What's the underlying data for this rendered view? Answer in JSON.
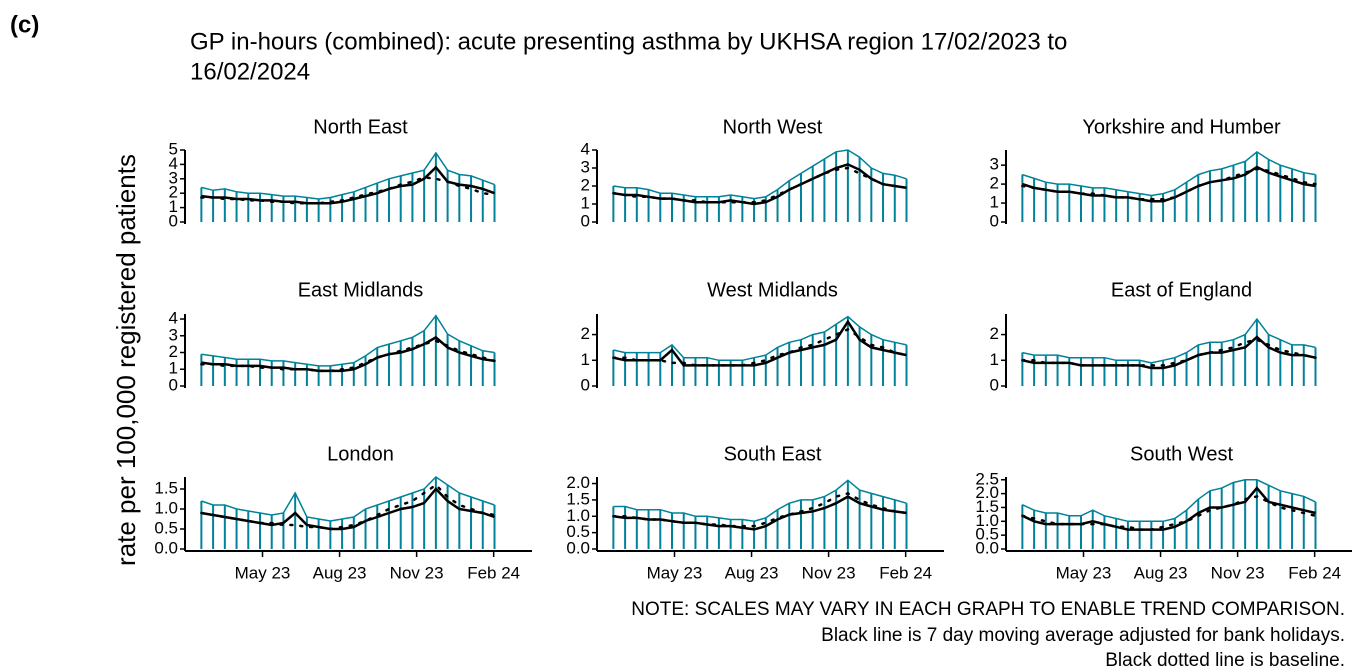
{
  "chart_data": {
    "type": "line",
    "label": "(c)",
    "title": [
      "GP in-hours (combined): acute presenting asthma by UKHSA region 17/02/2023 to",
      "16/02/2024"
    ],
    "ylabel": "rate per 100,000 registered patients",
    "notes": [
      "NOTE: SCALES MAY VARY IN EACH GRAPH TO ENABLE TREND COMPARISON.",
      "Black line is 7 day moving average adjusted for bank holidays.",
      "Black dotted line is baseline."
    ],
    "daily_color": "#00829a",
    "average_color": "#000000",
    "baseline_color": "#000000",
    "x": [
      0,
      14,
      28,
      42,
      56,
      70,
      84,
      98,
      112,
      126,
      140,
      154,
      168,
      182,
      196,
      210,
      224,
      238,
      252,
      266,
      280,
      294,
      308,
      322,
      336,
      350
    ],
    "xlim": [
      -10,
      390
    ],
    "xticks": [
      {
        "value": 73,
        "label": "May 23"
      },
      {
        "value": 165,
        "label": "Aug 23"
      },
      {
        "value": 257,
        "label": "Nov 23"
      },
      {
        "value": 349,
        "label": "Feb 24"
      }
    ],
    "panels": [
      {
        "title": "North East",
        "ylim": [
          0,
          5
        ],
        "yticks": [
          0,
          1,
          2,
          3,
          4,
          5
        ],
        "daily": [
          2.4,
          2.2,
          2.3,
          2.1,
          2.0,
          2.0,
          1.9,
          1.8,
          1.8,
          1.7,
          1.6,
          1.7,
          1.9,
          2.1,
          2.4,
          2.7,
          3.0,
          3.2,
          3.4,
          3.6,
          4.8,
          3.6,
          3.3,
          3.2,
          2.9,
          2.6
        ],
        "average": [
          1.8,
          1.7,
          1.7,
          1.6,
          1.6,
          1.5,
          1.5,
          1.4,
          1.4,
          1.3,
          1.3,
          1.3,
          1.4,
          1.6,
          1.8,
          2.0,
          2.3,
          2.5,
          2.6,
          3.0,
          3.8,
          2.8,
          2.6,
          2.5,
          2.3,
          2.0
        ],
        "baseline": [
          1.7,
          1.7,
          1.6,
          1.6,
          1.5,
          1.5,
          1.4,
          1.4,
          1.3,
          1.3,
          1.3,
          1.4,
          1.5,
          1.7,
          1.9,
          2.1,
          2.3,
          2.6,
          2.8,
          3.1,
          3.0,
          2.8,
          2.5,
          2.3,
          2.0,
          1.9
        ]
      },
      {
        "title": "North West",
        "ylim": [
          0,
          4
        ],
        "yticks": [
          0,
          1,
          2,
          3,
          4
        ],
        "daily": [
          2.0,
          1.9,
          1.9,
          1.8,
          1.6,
          1.6,
          1.5,
          1.4,
          1.4,
          1.4,
          1.5,
          1.4,
          1.3,
          1.4,
          1.8,
          2.3,
          2.7,
          3.1,
          3.5,
          3.9,
          4.0,
          3.6,
          3.0,
          2.7,
          2.6,
          2.4
        ],
        "average": [
          1.6,
          1.5,
          1.5,
          1.4,
          1.3,
          1.3,
          1.2,
          1.1,
          1.1,
          1.1,
          1.2,
          1.1,
          1.0,
          1.1,
          1.4,
          1.8,
          2.1,
          2.4,
          2.7,
          3.0,
          3.2,
          2.9,
          2.4,
          2.1,
          2.0,
          1.9
        ],
        "baseline": [
          1.6,
          1.5,
          1.4,
          1.4,
          1.3,
          1.3,
          1.2,
          1.2,
          1.1,
          1.1,
          1.1,
          1.1,
          1.1,
          1.2,
          1.5,
          1.8,
          2.1,
          2.4,
          2.7,
          2.9,
          3.0,
          2.7,
          2.4,
          2.1,
          2.0,
          1.9
        ]
      },
      {
        "title": "Yorkshire and Humber",
        "ylim": [
          0,
          3.8
        ],
        "yticks": [
          0,
          1,
          2,
          3
        ],
        "daily": [
          2.5,
          2.3,
          2.1,
          2.0,
          2.0,
          1.9,
          1.8,
          1.8,
          1.7,
          1.6,
          1.5,
          1.4,
          1.5,
          1.7,
          2.1,
          2.5,
          2.7,
          2.8,
          3.0,
          3.2,
          3.7,
          3.3,
          3.0,
          2.8,
          2.6,
          2.5
        ],
        "average": [
          2.0,
          1.8,
          1.7,
          1.6,
          1.6,
          1.5,
          1.4,
          1.4,
          1.3,
          1.3,
          1.2,
          1.1,
          1.1,
          1.3,
          1.6,
          1.9,
          2.1,
          2.2,
          2.3,
          2.5,
          2.9,
          2.6,
          2.4,
          2.2,
          2.0,
          1.9
        ],
        "baseline": [
          1.9,
          1.8,
          1.7,
          1.6,
          1.6,
          1.5,
          1.5,
          1.4,
          1.3,
          1.3,
          1.2,
          1.2,
          1.2,
          1.3,
          1.6,
          1.9,
          2.1,
          2.2,
          2.4,
          2.6,
          2.8,
          2.7,
          2.5,
          2.3,
          2.1,
          2.0
        ]
      },
      {
        "title": "East Midlands",
        "ylim": [
          0,
          4.3
        ],
        "yticks": [
          0,
          1,
          2,
          3,
          4
        ],
        "daily": [
          1.9,
          1.8,
          1.7,
          1.6,
          1.6,
          1.6,
          1.5,
          1.5,
          1.4,
          1.3,
          1.2,
          1.2,
          1.3,
          1.4,
          1.8,
          2.3,
          2.5,
          2.7,
          2.9,
          3.3,
          4.2,
          3.1,
          2.7,
          2.4,
          2.1,
          2.0
        ],
        "average": [
          1.4,
          1.3,
          1.3,
          1.2,
          1.2,
          1.2,
          1.1,
          1.1,
          1.0,
          1.0,
          0.9,
          0.9,
          0.9,
          1.0,
          1.3,
          1.7,
          1.9,
          2.0,
          2.2,
          2.5,
          2.9,
          2.3,
          2.0,
          1.8,
          1.6,
          1.5
        ],
        "baseline": [
          1.3,
          1.3,
          1.2,
          1.2,
          1.2,
          1.1,
          1.1,
          1.0,
          1.0,
          1.0,
          0.9,
          0.9,
          1.0,
          1.1,
          1.4,
          1.7,
          1.9,
          2.1,
          2.3,
          2.5,
          2.7,
          2.4,
          2.1,
          1.9,
          1.7,
          1.5
        ]
      },
      {
        "title": "West Midlands",
        "ylim": [
          0,
          2.8
        ],
        "yticks": [
          0,
          1,
          2
        ],
        "daily": [
          1.4,
          1.3,
          1.3,
          1.3,
          1.3,
          1.6,
          1.1,
          1.1,
          1.1,
          1.0,
          1.0,
          1.0,
          1.1,
          1.2,
          1.5,
          1.7,
          1.8,
          2.0,
          2.1,
          2.4,
          2.7,
          2.3,
          2.0,
          1.8,
          1.7,
          1.6
        ],
        "average": [
          1.1,
          1.0,
          1.0,
          1.0,
          1.0,
          1.4,
          0.8,
          0.8,
          0.8,
          0.8,
          0.8,
          0.8,
          0.8,
          0.9,
          1.1,
          1.3,
          1.4,
          1.5,
          1.6,
          1.8,
          2.5,
          1.8,
          1.5,
          1.4,
          1.3,
          1.2
        ],
        "baseline": [
          1.1,
          1.1,
          1.0,
          1.0,
          1.0,
          0.9,
          0.9,
          0.8,
          0.8,
          0.8,
          0.8,
          0.8,
          0.9,
          1.0,
          1.2,
          1.3,
          1.5,
          1.6,
          1.8,
          2.0,
          2.2,
          1.9,
          1.6,
          1.5,
          1.3,
          1.2
        ]
      },
      {
        "title": "East of England",
        "ylim": [
          0,
          2.8
        ],
        "yticks": [
          0,
          1,
          2
        ],
        "daily": [
          1.3,
          1.2,
          1.2,
          1.2,
          1.1,
          1.1,
          1.1,
          1.1,
          1.0,
          1.0,
          1.0,
          0.9,
          1.0,
          1.1,
          1.3,
          1.6,
          1.7,
          1.7,
          1.8,
          2.0,
          2.6,
          2.0,
          1.8,
          1.6,
          1.6,
          1.5
        ],
        "average": [
          1.0,
          0.9,
          0.9,
          0.9,
          0.9,
          0.8,
          0.8,
          0.8,
          0.8,
          0.8,
          0.8,
          0.7,
          0.7,
          0.8,
          1.0,
          1.2,
          1.3,
          1.3,
          1.4,
          1.5,
          1.9,
          1.5,
          1.3,
          1.2,
          1.2,
          1.1
        ],
        "baseline": [
          1.0,
          1.0,
          0.9,
          0.9,
          0.9,
          0.8,
          0.8,
          0.8,
          0.8,
          0.8,
          0.8,
          0.8,
          0.8,
          0.9,
          1.0,
          1.2,
          1.3,
          1.4,
          1.5,
          1.7,
          1.8,
          1.6,
          1.4,
          1.3,
          1.2,
          1.1
        ]
      },
      {
        "title": "London",
        "ylim": [
          0,
          1.8
        ],
        "yticks": [
          {
            "value": 0,
            "label": "0.0"
          },
          {
            "value": 0.5,
            "label": "0.5"
          },
          {
            "value": 1,
            "label": "1.0"
          },
          {
            "value": 1.5,
            "label": "1.5"
          }
        ],
        "daily": [
          1.2,
          1.1,
          1.1,
          1.0,
          0.95,
          0.9,
          0.85,
          0.9,
          1.4,
          0.8,
          0.75,
          0.7,
          0.75,
          0.8,
          1.0,
          1.1,
          1.2,
          1.3,
          1.4,
          1.5,
          1.8,
          1.6,
          1.4,
          1.3,
          1.2,
          1.1
        ],
        "average": [
          0.9,
          0.85,
          0.8,
          0.75,
          0.7,
          0.65,
          0.6,
          0.65,
          0.9,
          0.6,
          0.55,
          0.5,
          0.5,
          0.55,
          0.7,
          0.8,
          0.9,
          1.0,
          1.05,
          1.15,
          1.5,
          1.2,
          1.0,
          0.95,
          0.9,
          0.8
        ],
        "baseline": [
          0.9,
          0.85,
          0.8,
          0.75,
          0.7,
          0.65,
          0.65,
          0.6,
          0.6,
          0.55,
          0.55,
          0.5,
          0.55,
          0.6,
          0.7,
          0.85,
          1.0,
          1.1,
          1.2,
          1.4,
          1.6,
          1.3,
          1.1,
          1.0,
          0.9,
          0.85
        ]
      },
      {
        "title": "South East",
        "ylim": [
          0,
          2.2
        ],
        "yticks": [
          {
            "value": 0,
            "label": "0.0"
          },
          {
            "value": 0.5,
            "label": "0.5"
          },
          {
            "value": 1,
            "label": "1.0"
          },
          {
            "value": 1.5,
            "label": "1.5"
          },
          {
            "value": 2,
            "label": "2.0"
          }
        ],
        "daily": [
          1.3,
          1.3,
          1.2,
          1.2,
          1.2,
          1.1,
          1.1,
          1.0,
          1.0,
          0.95,
          0.9,
          0.9,
          0.85,
          0.95,
          1.2,
          1.4,
          1.5,
          1.5,
          1.6,
          1.8,
          2.1,
          1.8,
          1.7,
          1.6,
          1.5,
          1.4
        ],
        "average": [
          1.0,
          0.95,
          0.95,
          0.9,
          0.9,
          0.85,
          0.8,
          0.8,
          0.75,
          0.7,
          0.7,
          0.65,
          0.6,
          0.7,
          0.9,
          1.05,
          1.1,
          1.15,
          1.25,
          1.4,
          1.6,
          1.4,
          1.3,
          1.2,
          1.15,
          1.1
        ],
        "baseline": [
          1.0,
          1.0,
          0.95,
          0.9,
          0.9,
          0.85,
          0.8,
          0.8,
          0.75,
          0.75,
          0.7,
          0.7,
          0.7,
          0.8,
          0.95,
          1.05,
          1.15,
          1.25,
          1.4,
          1.6,
          1.7,
          1.5,
          1.35,
          1.25,
          1.15,
          1.1
        ]
      },
      {
        "title": "South West",
        "ylim": [
          0,
          2.6
        ],
        "yticks": [
          {
            "value": 0,
            "label": "0.0"
          },
          {
            "value": 0.5,
            "label": "0.5"
          },
          {
            "value": 1,
            "label": "1.0"
          },
          {
            "value": 1.5,
            "label": "1.5"
          },
          {
            "value": 2,
            "label": "2.0"
          },
          {
            "value": 2.5,
            "label": "2.5"
          }
        ],
        "daily": [
          1.6,
          1.4,
          1.3,
          1.3,
          1.2,
          1.2,
          1.4,
          1.2,
          1.1,
          1.0,
          1.0,
          1.0,
          1.0,
          1.1,
          1.4,
          1.8,
          2.1,
          2.2,
          2.4,
          2.5,
          2.5,
          2.3,
          2.1,
          2.0,
          1.9,
          1.7
        ],
        "average": [
          1.2,
          1.0,
          0.9,
          0.9,
          0.9,
          0.9,
          1.0,
          0.9,
          0.8,
          0.7,
          0.7,
          0.7,
          0.7,
          0.8,
          1.0,
          1.3,
          1.5,
          1.5,
          1.6,
          1.7,
          2.2,
          1.7,
          1.6,
          1.5,
          1.4,
          1.3
        ],
        "baseline": [
          1.2,
          1.1,
          1.0,
          0.9,
          0.9,
          0.9,
          0.9,
          0.9,
          0.8,
          0.8,
          0.7,
          0.7,
          0.8,
          0.9,
          1.0,
          1.2,
          1.4,
          1.5,
          1.6,
          1.8,
          1.9,
          1.7,
          1.5,
          1.4,
          1.3,
          1.2
        ]
      }
    ]
  }
}
